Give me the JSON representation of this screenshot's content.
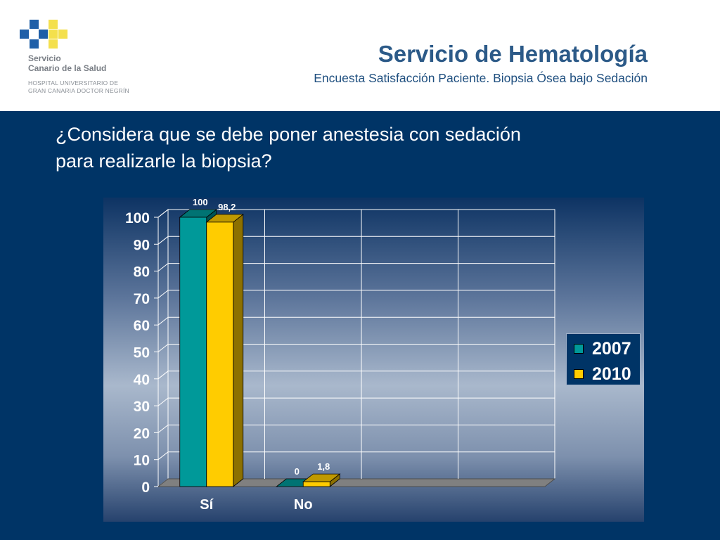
{
  "header": {
    "org_line1": "Servicio",
    "org_line2": "Canario de la Salud",
    "hospital_line1": "HOSPITAL UNIVERSITARIO DE",
    "hospital_line2": "GRAN CANARIA DOCTOR NEGRÍN",
    "title": "Servicio de Hematología",
    "subtitle": "Encuesta Satisfacción Paciente. Biopsia Ósea bajo Sedación"
  },
  "question": {
    "line1": "¿Considera que se debe poner anestesia con sedación",
    "line2": "para realizarle la biopsia?"
  },
  "colors": {
    "logo_blue": "#1f5fa8",
    "logo_yellow": "#f4e04d",
    "series_2007": "#009999",
    "series_2010": "#ffcc00"
  },
  "chart_data": {
    "type": "bar",
    "title": "",
    "xlabel": "",
    "ylabel": "",
    "categories": [
      "Sí",
      "No"
    ],
    "series": [
      {
        "name": "2007",
        "values": [
          100,
          0
        ],
        "labels": [
          "100",
          "0"
        ]
      },
      {
        "name": "2010",
        "values": [
          98.2,
          1.8
        ],
        "labels": [
          "98,2",
          "1,8"
        ]
      }
    ],
    "ylim": [
      0,
      100
    ],
    "yticks": [
      "0",
      "10",
      "20",
      "30",
      "40",
      "50",
      "60",
      "70",
      "80",
      "90",
      "100"
    ],
    "grid": true,
    "legend_position": "right",
    "style": "3d-clustered-column"
  }
}
